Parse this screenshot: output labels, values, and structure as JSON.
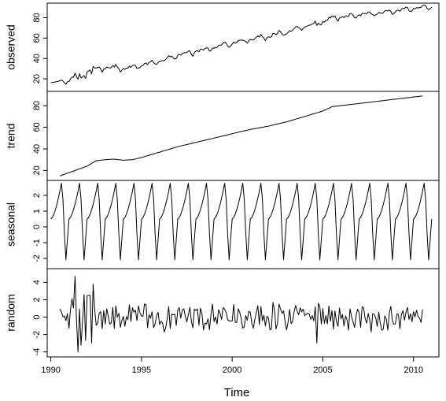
{
  "chart_data": {
    "type": "line",
    "xlabel": "Time",
    "xlim": [
      1989.8,
      2011.4
    ],
    "x_ticks": [
      1990,
      1995,
      2000,
      2005,
      2010
    ],
    "x_tick_labels": [
      "1990",
      "1995",
      "2000",
      "2005",
      "2010"
    ],
    "grid": false,
    "panels": [
      {
        "name": "observed",
        "ylabel": "observed",
        "ylim": [
          10,
          92
        ],
        "y_ticks": [
          20,
          40,
          60,
          80
        ],
        "y_tick_labels": [
          "20",
          "40",
          "60",
          "80"
        ],
        "start": 1990.0,
        "end": 2011.0,
        "kind": "observed"
      },
      {
        "name": "trend",
        "ylabel": "trend",
        "ylim": [
          13,
          91
        ],
        "y_ticks": [
          20,
          40,
          60,
          80
        ],
        "y_tick_labels": [
          "20",
          "40",
          "60",
          "80"
        ],
        "start": 1990.5,
        "end": 2010.5,
        "kind": "trend"
      },
      {
        "name": "seasonal",
        "ylabel": "seasonal",
        "ylim": [
          -2.5,
          2.8
        ],
        "y_ticks": [
          -2,
          -1,
          0,
          1,
          2
        ],
        "y_tick_labels": [
          "-2",
          "-1",
          "0",
          "1",
          "2"
        ],
        "start": 1990.0,
        "end": 2011.0,
        "kind": "seasonal"
      },
      {
        "name": "random",
        "ylabel": "random",
        "ylim": [
          -4.3,
          5.3
        ],
        "y_ticks": [
          -4,
          -2,
          0,
          2,
          4
        ],
        "y_tick_labels": [
          "-4",
          "-2",
          "0",
          "2",
          "4"
        ],
        "start": 1990.5,
        "end": 2010.5,
        "kind": "random"
      }
    ],
    "trend_knots": [
      [
        1990.5,
        15
      ],
      [
        1991.0,
        18
      ],
      [
        1992.0,
        24
      ],
      [
        1992.5,
        29
      ],
      [
        1993.0,
        30
      ],
      [
        1993.5,
        30.5
      ],
      [
        1994.0,
        29.5
      ],
      [
        1994.5,
        30
      ],
      [
        1995.0,
        32
      ],
      [
        1996.0,
        37
      ],
      [
        1997.0,
        42
      ],
      [
        1998.0,
        46
      ],
      [
        1999.0,
        50
      ],
      [
        2000.0,
        54
      ],
      [
        2001.0,
        58
      ],
      [
        2002.0,
        61
      ],
      [
        2003.0,
        65
      ],
      [
        2004.0,
        70
      ],
      [
        2005.0,
        75
      ],
      [
        2005.5,
        79
      ],
      [
        2006.0,
        80
      ],
      [
        2007.0,
        82
      ],
      [
        2008.0,
        84
      ],
      [
        2009.0,
        86
      ],
      [
        2010.0,
        88
      ],
      [
        2010.5,
        89
      ]
    ]
  }
}
